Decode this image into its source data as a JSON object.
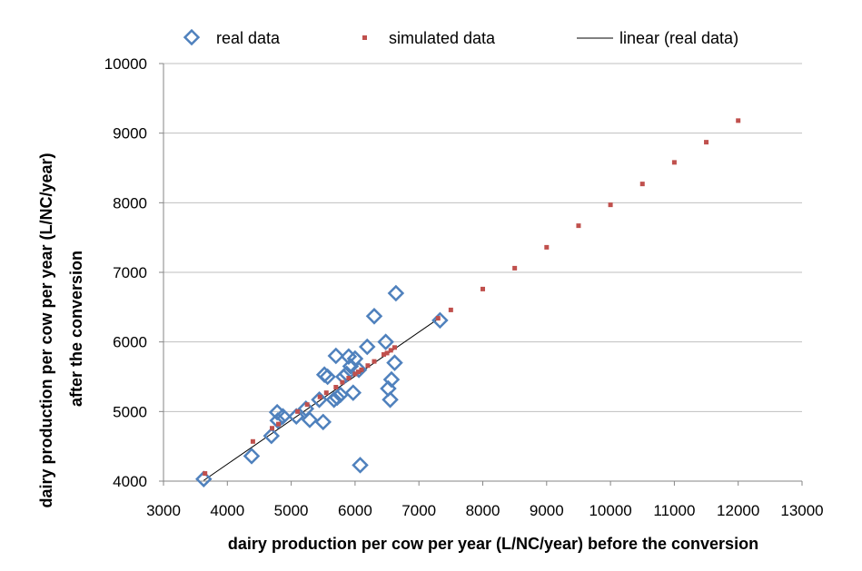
{
  "chart_data": {
    "type": "scatter",
    "xlabel": "dairy production  per cow per year (L/NC/year) before the conversion",
    "ylabel_line1": "dairy production per cow per year (L/NC/year)",
    "ylabel_line2": "after the conversion",
    "xlim": [
      3000,
      13000
    ],
    "ylim": [
      4000,
      10000
    ],
    "x_ticks": [
      3000,
      4000,
      5000,
      6000,
      7000,
      8000,
      9000,
      10000,
      11000,
      12000,
      13000
    ],
    "y_ticks": [
      4000,
      5000,
      6000,
      7000,
      8000,
      9000,
      10000
    ],
    "grid": "horizontal",
    "legend_position": "top",
    "legend": [
      "real data",
      "simulated data",
      "linear (real data)"
    ],
    "series": [
      {
        "name": "real data",
        "marker": "diamond-open",
        "color": "#4f81bd",
        "points": [
          [
            3630,
            4030
          ],
          [
            4380,
            4360
          ],
          [
            4690,
            4650
          ],
          [
            4780,
            4990
          ],
          [
            4790,
            4870
          ],
          [
            4870,
            4930
          ],
          [
            5080,
            4930
          ],
          [
            5230,
            5040
          ],
          [
            5290,
            4880
          ],
          [
            5440,
            5170
          ],
          [
            5500,
            4850
          ],
          [
            5520,
            5530
          ],
          [
            5570,
            5500
          ],
          [
            5670,
            5170
          ],
          [
            5700,
            5800
          ],
          [
            5720,
            5200
          ],
          [
            5770,
            5240
          ],
          [
            5820,
            5500
          ],
          [
            5870,
            5540
          ],
          [
            5900,
            5790
          ],
          [
            5930,
            5650
          ],
          [
            5970,
            5270
          ],
          [
            6000,
            5760
          ],
          [
            6060,
            5600
          ],
          [
            6080,
            4230
          ],
          [
            6190,
            5930
          ],
          [
            6300,
            6370
          ],
          [
            6480,
            6000
          ],
          [
            6520,
            5330
          ],
          [
            6550,
            5170
          ],
          [
            6570,
            5460
          ],
          [
            6620,
            5700
          ],
          [
            6640,
            6700
          ],
          [
            7330,
            6310
          ]
        ]
      },
      {
        "name": "simulated data",
        "marker": "square-small",
        "color": "#c0504d",
        "points": [
          [
            3650,
            4110
          ],
          [
            4400,
            4570
          ],
          [
            4700,
            4760
          ],
          [
            4800,
            4820
          ],
          [
            5100,
            5000
          ],
          [
            5250,
            5100
          ],
          [
            5450,
            5210
          ],
          [
            5550,
            5270
          ],
          [
            5700,
            5350
          ],
          [
            5800,
            5420
          ],
          [
            5900,
            5480
          ],
          [
            6000,
            5540
          ],
          [
            6050,
            5570
          ],
          [
            6100,
            5600
          ],
          [
            6200,
            5660
          ],
          [
            6300,
            5720
          ],
          [
            6450,
            5820
          ],
          [
            6500,
            5840
          ],
          [
            6560,
            5880
          ],
          [
            6620,
            5920
          ],
          [
            7300,
            6340
          ],
          [
            7500,
            6460
          ],
          [
            8000,
            6760
          ],
          [
            8500,
            7060
          ],
          [
            9000,
            7360
          ],
          [
            9500,
            7670
          ],
          [
            10000,
            7970
          ],
          [
            10500,
            8270
          ],
          [
            11000,
            8580
          ],
          [
            11500,
            8870
          ],
          [
            12000,
            9180
          ]
        ]
      },
      {
        "name": "linear (real data)",
        "marker": "line",
        "color": "#000000",
        "points": [
          [
            3630,
            4010
          ],
          [
            7330,
            6350
          ]
        ]
      }
    ]
  }
}
